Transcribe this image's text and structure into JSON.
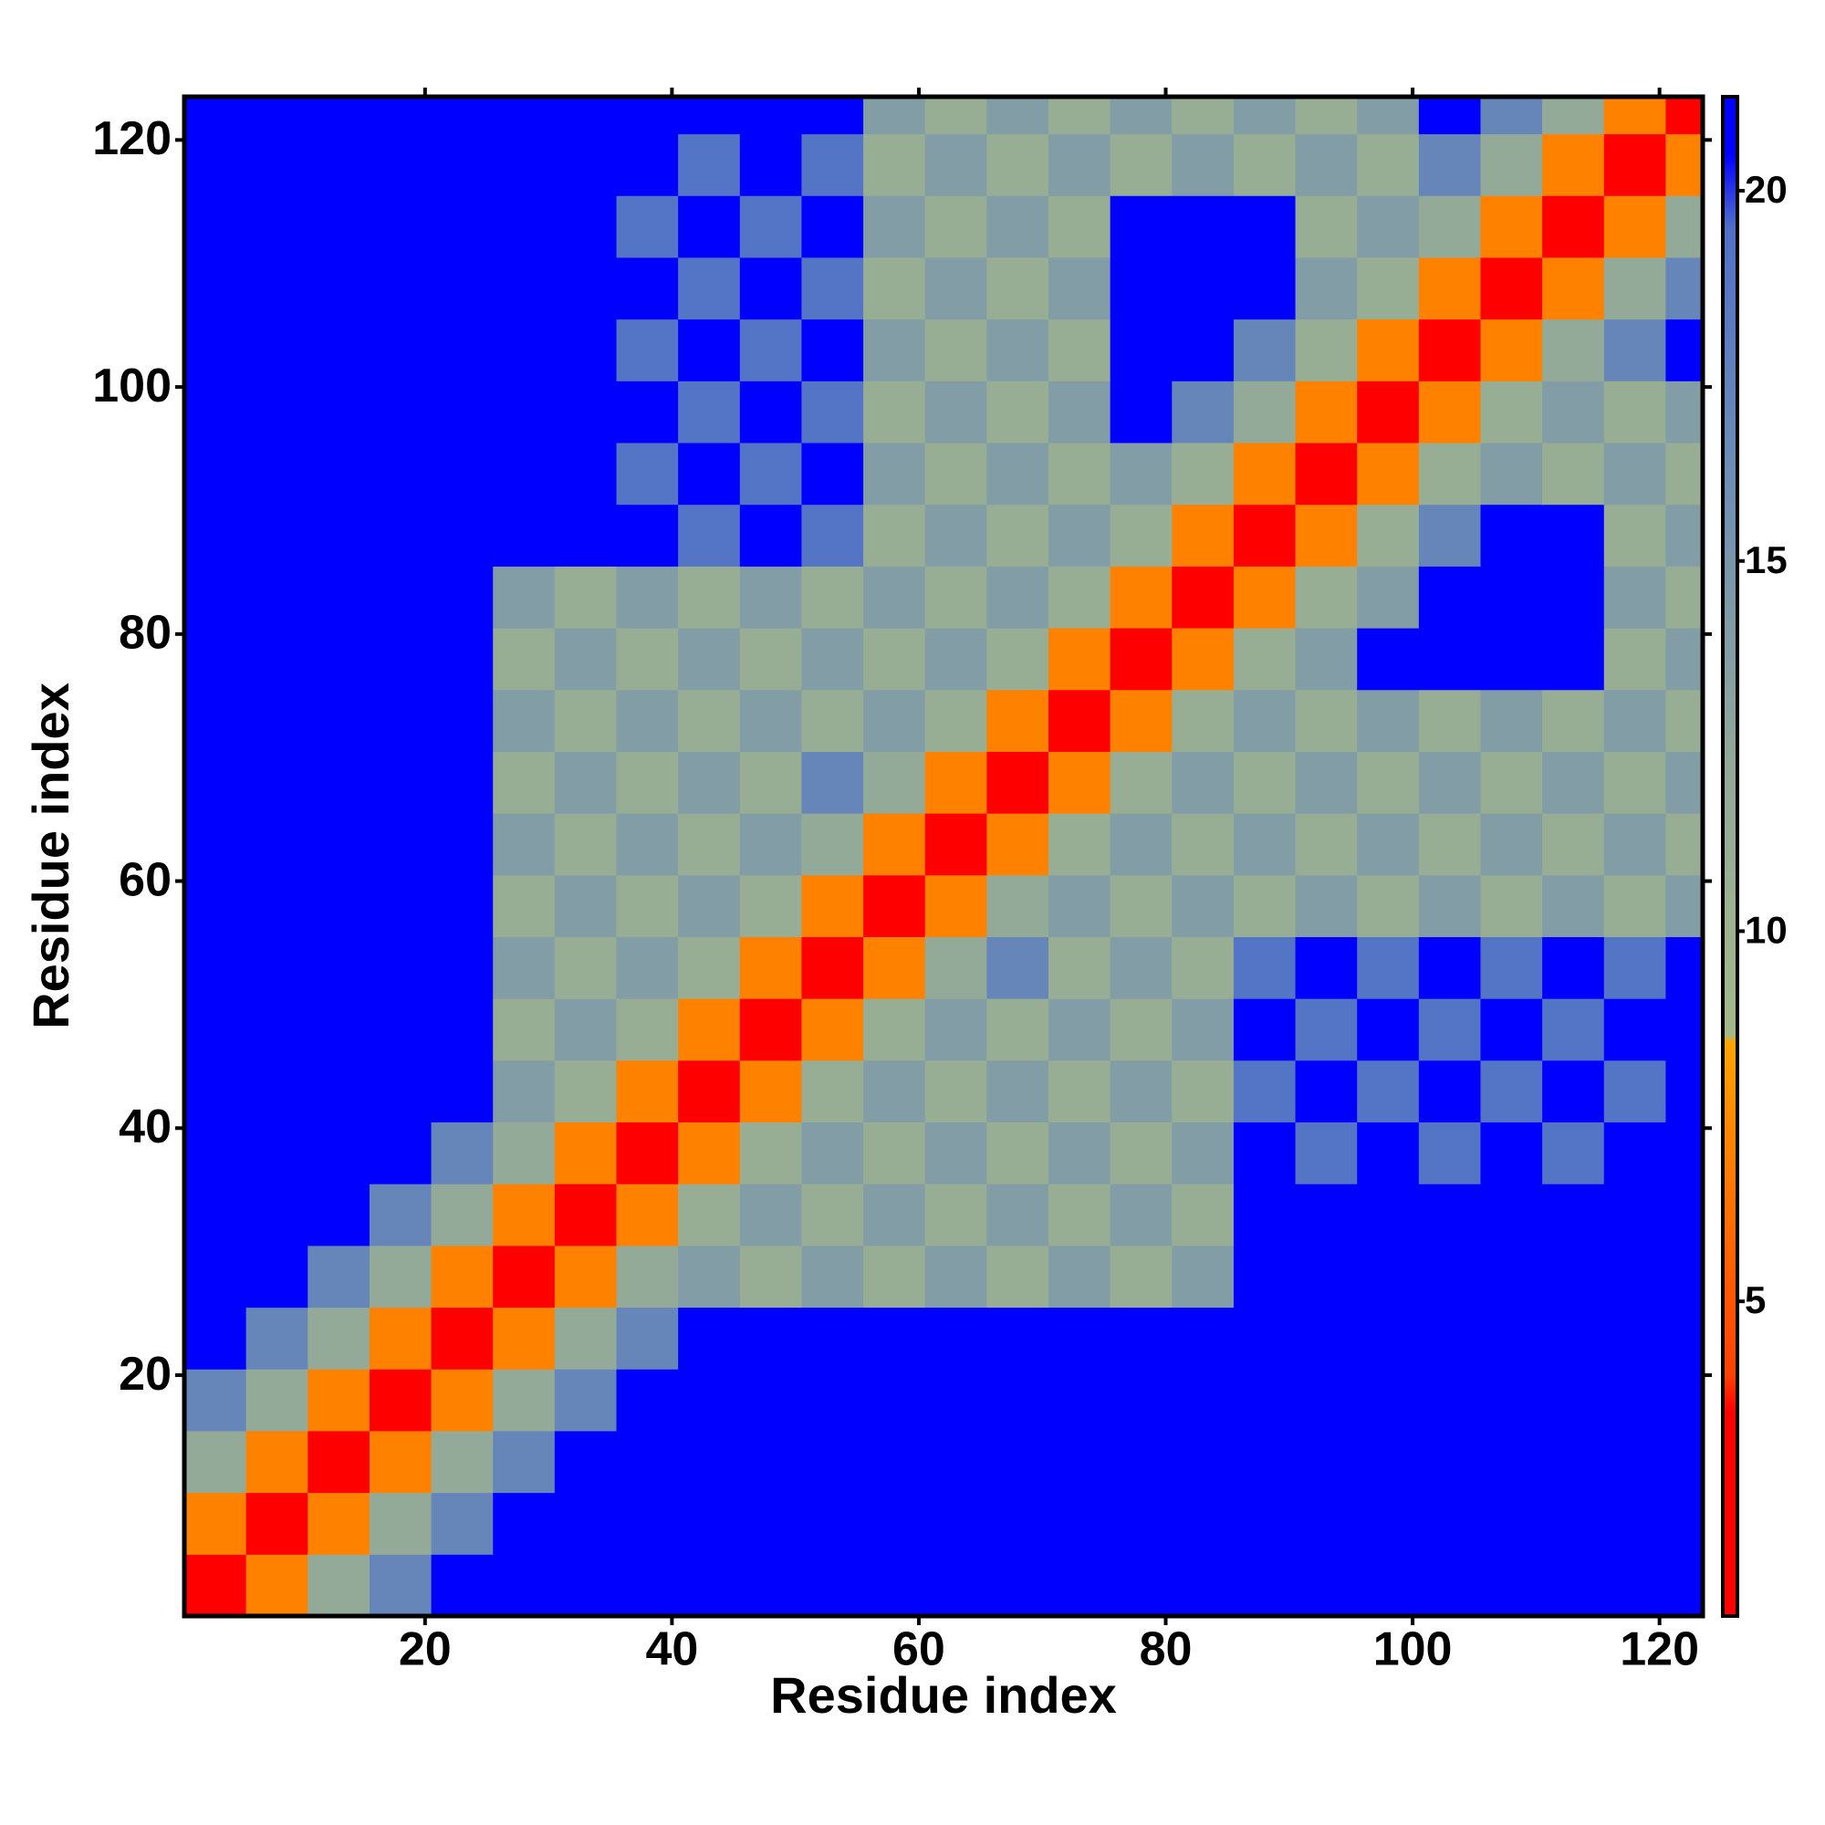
{
  "chart_data": {
    "type": "heatmap",
    "x_label": "Residue index",
    "y_label": "Residue index",
    "x": [
      3,
      8,
      13,
      18,
      23,
      28,
      33,
      38,
      43,
      48,
      53,
      58,
      63,
      68,
      73,
      78,
      83,
      88,
      93,
      98,
      103,
      108,
      113,
      118,
      123
    ],
    "y": [
      3,
      8,
      13,
      18,
      23,
      28,
      33,
      38,
      43,
      48,
      53,
      58,
      63,
      68,
      73,
      78,
      83,
      88,
      93,
      98,
      103,
      108,
      113,
      118,
      123
    ],
    "z": [
      [
        2,
        7,
        12,
        17,
        21,
        21,
        21,
        21,
        21,
        21,
        21,
        21,
        21,
        21,
        21,
        21,
        21,
        21,
        21,
        21,
        21,
        21,
        21,
        21,
        21
      ],
      [
        7,
        2,
        7,
        12,
        17,
        21,
        21,
        21,
        21,
        21,
        21,
        21,
        21,
        21,
        21,
        21,
        21,
        21,
        21,
        21,
        21,
        21,
        21,
        21,
        21
      ],
      [
        12,
        7,
        2,
        7,
        12,
        17,
        21,
        21,
        21,
        21,
        21,
        21,
        21,
        21,
        21,
        21,
        21,
        21,
        21,
        21,
        21,
        21,
        21,
        21,
        21
      ],
      [
        17,
        12,
        7,
        2,
        7,
        12,
        17,
        21,
        21,
        21,
        21,
        21,
        21,
        21,
        21,
        21,
        21,
        21,
        21,
        21,
        21,
        21,
        21,
        21,
        21
      ],
      [
        21,
        17,
        12,
        7,
        2,
        7,
        12,
        17,
        21,
        21,
        21,
        21,
        21,
        21,
        21,
        21,
        21,
        21,
        21,
        21,
        21,
        21,
        21,
        21,
        21
      ],
      [
        21,
        21,
        17,
        12,
        7,
        2,
        7,
        12,
        14,
        11,
        14,
        11,
        14,
        11,
        14,
        11,
        14,
        21,
        21,
        21,
        21,
        21,
        21,
        21,
        21
      ],
      [
        21,
        21,
        21,
        17,
        12,
        7,
        2,
        7,
        11,
        14,
        11,
        14,
        11,
        14,
        11,
        14,
        11,
        21,
        21,
        21,
        21,
        21,
        21,
        21,
        21
      ],
      [
        21,
        21,
        21,
        21,
        17,
        12,
        7,
        2,
        7,
        11,
        14,
        11,
        14,
        11,
        14,
        11,
        14,
        21,
        19,
        21,
        19,
        21,
        19,
        21,
        21
      ],
      [
        21,
        21,
        21,
        21,
        21,
        14,
        11,
        7,
        2,
        7,
        11,
        14,
        11,
        14,
        11,
        14,
        11,
        19,
        21,
        19,
        21,
        19,
        21,
        19,
        21
      ],
      [
        21,
        21,
        21,
        21,
        21,
        11,
        14,
        11,
        7,
        2,
        7,
        11,
        14,
        11,
        14,
        11,
        14,
        21,
        19,
        21,
        19,
        21,
        19,
        21,
        21
      ],
      [
        21,
        21,
        21,
        21,
        21,
        14,
        11,
        14,
        11,
        7,
        2,
        7,
        12,
        17,
        11,
        14,
        11,
        19,
        21,
        19,
        21,
        19,
        21,
        19,
        21
      ],
      [
        21,
        21,
        21,
        21,
        21,
        11,
        14,
        11,
        14,
        11,
        7,
        2,
        7,
        12,
        14,
        11,
        14,
        11,
        14,
        11,
        14,
        11,
        14,
        11,
        14
      ],
      [
        21,
        21,
        21,
        21,
        21,
        14,
        11,
        14,
        11,
        14,
        12,
        7,
        2,
        7,
        11,
        14,
        11,
        14,
        11,
        14,
        11,
        14,
        11,
        14,
        11
      ],
      [
        21,
        21,
        21,
        21,
        21,
        11,
        14,
        11,
        14,
        11,
        17,
        12,
        7,
        2,
        7,
        11,
        14,
        11,
        14,
        11,
        14,
        11,
        14,
        11,
        14
      ],
      [
        21,
        21,
        21,
        21,
        21,
        14,
        11,
        14,
        11,
        14,
        11,
        14,
        11,
        7,
        2,
        7,
        11,
        14,
        11,
        14,
        11,
        14,
        11,
        14,
        11
      ],
      [
        21,
        21,
        21,
        21,
        21,
        11,
        14,
        11,
        14,
        11,
        14,
        11,
        14,
        11,
        7,
        2,
        7,
        11,
        14,
        21,
        21,
        21,
        21,
        11,
        14
      ],
      [
        21,
        21,
        21,
        21,
        21,
        14,
        11,
        14,
        11,
        14,
        11,
        14,
        11,
        14,
        11,
        7,
        2,
        7,
        11,
        14,
        21,
        21,
        21,
        14,
        11
      ],
      [
        21,
        21,
        21,
        21,
        21,
        21,
        21,
        21,
        19,
        21,
        19,
        11,
        14,
        11,
        14,
        11,
        7,
        2,
        7,
        11,
        17,
        21,
        21,
        11,
        14
      ],
      [
        21,
        21,
        21,
        21,
        21,
        21,
        21,
        19,
        21,
        19,
        21,
        14,
        11,
        14,
        11,
        14,
        11,
        7,
        2,
        7,
        11,
        14,
        11,
        14,
        11
      ],
      [
        21,
        21,
        21,
        21,
        21,
        21,
        21,
        21,
        19,
        21,
        19,
        11,
        14,
        11,
        14,
        21,
        17,
        12,
        7,
        2,
        7,
        11,
        14,
        11,
        14
      ],
      [
        21,
        21,
        21,
        21,
        21,
        21,
        21,
        19,
        21,
        19,
        21,
        14,
        11,
        14,
        11,
        21,
        21,
        17,
        11,
        7,
        2,
        7,
        12,
        17,
        21
      ],
      [
        21,
        21,
        21,
        21,
        21,
        21,
        21,
        21,
        19,
        21,
        19,
        11,
        14,
        11,
        14,
        21,
        21,
        21,
        14,
        11,
        7,
        2,
        7,
        12,
        17
      ],
      [
        21,
        21,
        21,
        21,
        21,
        21,
        21,
        19,
        21,
        19,
        21,
        14,
        11,
        14,
        11,
        21,
        21,
        21,
        11,
        14,
        12,
        7,
        2,
        7,
        12
      ],
      [
        21,
        21,
        21,
        21,
        21,
        21,
        21,
        21,
        19,
        21,
        19,
        11,
        14,
        11,
        14,
        11,
        14,
        11,
        14,
        11,
        17,
        12,
        7,
        2,
        7
      ],
      [
        21,
        21,
        21,
        21,
        21,
        21,
        21,
        21,
        21,
        21,
        21,
        14,
        11,
        14,
        11,
        14,
        11,
        14,
        11,
        14,
        21,
        17,
        12,
        7,
        2
      ]
    ],
    "xlim": [
      0.5,
      123.5
    ],
    "ylim": [
      0.5,
      123.5
    ],
    "xticks": [
      20,
      40,
      60,
      80,
      100,
      120
    ],
    "yticks": [
      20,
      40,
      60,
      80,
      100,
      120
    ],
    "zlim": [
      0.75,
      21.27
    ],
    "zticks": [
      5,
      10,
      15,
      20
    ],
    "colorscale": [
      [
        0.75,
        "#ff0000"
      ],
      [
        3.5,
        "#ff0000"
      ],
      [
        4,
        "#ff4000"
      ],
      [
        7.5,
        "#ff8c00"
      ],
      [
        8.5,
        "#ffa500"
      ],
      [
        8.6,
        "#a3b98a"
      ],
      [
        12,
        "#94aa98"
      ],
      [
        16,
        "#6f8fb4"
      ],
      [
        19.5,
        "#5070c8"
      ],
      [
        20.5,
        "#0000ff"
      ],
      [
        21.27,
        "#0000ff"
      ]
    ]
  }
}
